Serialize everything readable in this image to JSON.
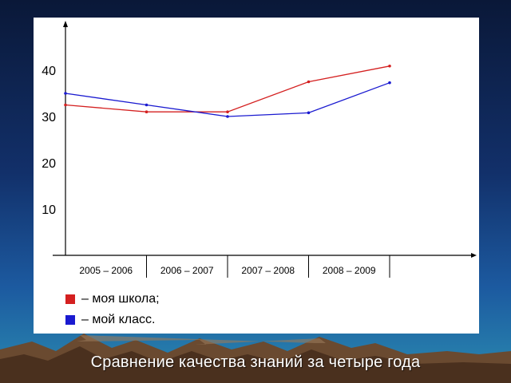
{
  "slide": {
    "caption": "Сравнение качества знаний за четыре года"
  },
  "chart_data": {
    "type": "line",
    "categories": [
      "2005 – 2006",
      "2006 – 2007",
      "2007 – 2008",
      "2008 – 2009"
    ],
    "y_ticks": [
      10,
      20,
      30,
      40
    ],
    "ylim": [
      0,
      50
    ],
    "title": "",
    "xlabel": "",
    "ylabel": "",
    "grid": false,
    "legend_placement": "bottom-left",
    "series": [
      {
        "name": "– моя школа;",
        "color": "#d42020",
        "x": [
          0.0,
          1.0,
          2.0,
          3.0,
          4.0
        ],
        "values": [
          32.5,
          31.0,
          31.0,
          37.5,
          40.9
        ]
      },
      {
        "name": "– мой класс.",
        "color": "#1a1ad0",
        "x": [
          0.0,
          1.0,
          2.0,
          3.0,
          4.0
        ],
        "values": [
          35.0,
          32.5,
          30.0,
          30.8,
          37.3
        ]
      }
    ]
  }
}
